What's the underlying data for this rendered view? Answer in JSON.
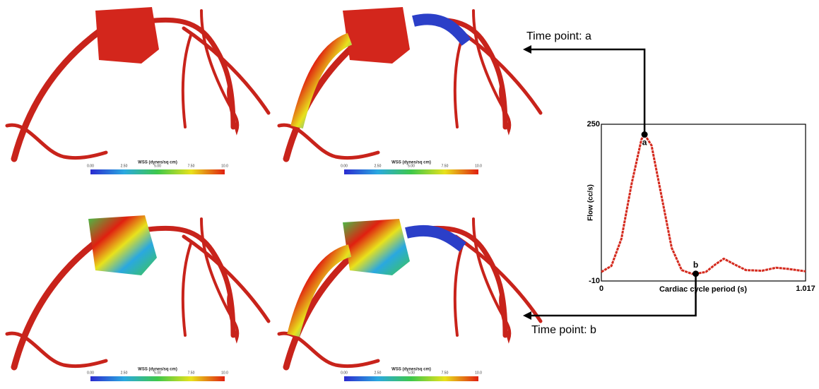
{
  "chart_data": {
    "type": "line",
    "x_label": "Cardiac cycle period (s)",
    "y_label": "Flow (cc/s)",
    "x": [
      0,
      0.05,
      0.1,
      0.15,
      0.2,
      0.215,
      0.25,
      0.3,
      0.35,
      0.4,
      0.45,
      0.47,
      0.52,
      0.57,
      0.61,
      0.66,
      0.72,
      0.8,
      0.87,
      0.93,
      1.017
    ],
    "series": [
      {
        "color": "#d42a1e",
        "values": [
          5,
          15,
          60,
          150,
          225,
          233,
          215,
          130,
          45,
          8,
          2,
          2,
          5,
          18,
          27,
          18,
          8,
          7,
          12,
          10,
          6
        ]
      }
    ],
    "markers": [
      {
        "label": "a",
        "x": 0.215,
        "y": 233
      },
      {
        "label": "b",
        "x": 0.47,
        "y": 2
      }
    ],
    "xlim": [
      0,
      1.017
    ],
    "xticks": [
      0,
      1.017
    ],
    "ylim": [
      -10,
      250
    ],
    "yticks": [
      -10,
      250
    ]
  },
  "annotations": [
    "Time point: a",
    "Time point: b"
  ],
  "colorbar": {
    "title": "WSS (dynes/sq cm)",
    "ticks": [
      "0.00",
      "2.50",
      "5.00",
      "7.50",
      "10.0"
    ]
  }
}
